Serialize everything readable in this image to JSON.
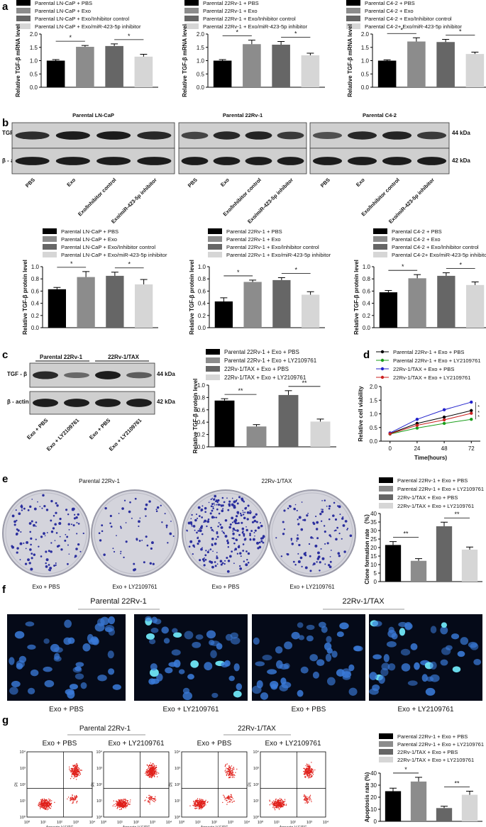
{
  "colors": {
    "s1": "#000000",
    "s2": "#8c8c8c",
    "s3": "#666666",
    "s4": "#d6d6d6",
    "dish": "#d4d4dc",
    "colony": "#2b2f9e",
    "flow_dot": "#e0201b",
    "nuclei": "#3a7ad8",
    "nuclei_bright": "#6fe6f5",
    "micro_bg": "#050a18"
  },
  "panel_labels": [
    "a",
    "b",
    "c",
    "d",
    "e",
    "f",
    "g"
  ],
  "chart_data": [
    {
      "id": "a1",
      "type": "bar",
      "panel": "a",
      "ylabel": "Relative TGF-β mRNA level",
      "ylim": [
        0,
        2.0
      ],
      "yticks": [
        "0.0",
        "0.5",
        "1.0",
        "1.5",
        "2.0"
      ],
      "legend": [
        "Parental LN-CaP + PBS",
        "Parental LN-CaP + Exo",
        "Parental LN-CaP + Exo/Inhibitor control",
        "Parental LN-CaP + Exo/miR-423-5p inhibitor"
      ],
      "values": [
        1.0,
        1.52,
        1.55,
        1.15
      ],
      "errors": [
        0.04,
        0.05,
        0.08,
        0.09
      ],
      "sig": [
        "*",
        "*"
      ]
    },
    {
      "id": "a2",
      "type": "bar",
      "panel": "a",
      "ylabel": "Relative TGF-β mRNA level",
      "ylim": [
        0,
        2.0
      ],
      "yticks": [
        "0.0",
        "0.5",
        "1.0",
        "1.5",
        "2.0"
      ],
      "legend": [
        "Parental 22Rv-1 + PBS",
        "Parental 22Rv-1 + Exo",
        "Parental 22Rv-1 + Exo/Inhibitor control",
        "Parental 22Rv-1 + Exo/miR-423-5p inhibitor"
      ],
      "values": [
        1.0,
        1.62,
        1.6,
        1.2
      ],
      "errors": [
        0.04,
        0.15,
        0.12,
        0.08
      ],
      "sig": [
        "*",
        "*"
      ]
    },
    {
      "id": "a3",
      "type": "bar",
      "panel": "a",
      "ylabel": "Relative TGF-β mRNA level",
      "ylim": [
        0,
        2.0
      ],
      "yticks": [
        "0.0",
        "0.5",
        "1.0",
        "1.5",
        "2.0"
      ],
      "legend": [
        "Parental C4-2 + PBS",
        "Parental C4-2 + Exo",
        "Parental C4-2 + Exo/Inhibitor control",
        "Parental C4-2+ Exo/miR-423-5p inhibitor"
      ],
      "values": [
        1.0,
        1.72,
        1.7,
        1.25
      ],
      "errors": [
        0.03,
        0.14,
        0.1,
        0.07
      ],
      "sig": [
        "*",
        "*"
      ]
    },
    {
      "id": "b1",
      "type": "bar",
      "panel": "b",
      "ylabel": "Relative TGF-β protein level",
      "ylim": [
        0,
        1.0
      ],
      "yticks": [
        "0.0",
        "0.2",
        "0.4",
        "0.6",
        "0.8",
        "1.0"
      ],
      "legend": [
        "Parental LN-CaP + PBS",
        "Parental LN-CaP + Exo",
        "Parental LN-CaP + Exo/Inhibitor control",
        "Parental LN-CaP + Exo/miR-423-5p inhibitor"
      ],
      "values": [
        0.63,
        0.83,
        0.85,
        0.71
      ],
      "errors": [
        0.03,
        0.09,
        0.06,
        0.08
      ],
      "sig": [
        "*",
        "*"
      ]
    },
    {
      "id": "b2",
      "type": "bar",
      "panel": "b",
      "ylabel": "Relative TGF-β protein level",
      "ylim": [
        0,
        1.0
      ],
      "yticks": [
        "0.0",
        "0.2",
        "0.4",
        "0.6",
        "0.8",
        "1.0"
      ],
      "legend": [
        "Parental 22Rv-1 + PBS",
        "Parental 22Rv-1 + Exo",
        "Parental 22Rv-1 + Exo/Inhibitor control",
        "Parental 22Rv-1 + Exo/miR-423-5p inhibitor"
      ],
      "values": [
        0.43,
        0.75,
        0.78,
        0.54
      ],
      "errors": [
        0.06,
        0.03,
        0.04,
        0.05
      ],
      "sig": [
        "*",
        "*"
      ]
    },
    {
      "id": "b3",
      "type": "bar",
      "panel": "b",
      "ylabel": "Relative TGF-β protein level",
      "ylim": [
        0,
        1.0
      ],
      "yticks": [
        "0.0",
        "0.2",
        "0.4",
        "0.6",
        "0.8",
        "1.0"
      ],
      "legend": [
        "Parental C4-2 + PBS",
        "Parental C4-2 + Exo",
        "Parental C4-2 + Exo/Inhibitor control",
        "Parental C4-2+ Exo/miR-423-5p inhibitor"
      ],
      "values": [
        0.58,
        0.81,
        0.85,
        0.7
      ],
      "errors": [
        0.03,
        0.06,
        0.05,
        0.05
      ],
      "sig": [
        "*",
        "*"
      ]
    },
    {
      "id": "c",
      "type": "bar",
      "panel": "c",
      "ylabel": "Relative TGF-β protein level",
      "ylim": [
        0,
        1.0
      ],
      "yticks": [
        "0.0",
        "0.2",
        "0.4",
        "0.6",
        "0.8",
        "1.0"
      ],
      "legend": [
        "Parental 22Rv-1 + Exo + PBS",
        "Parental 22Rv-1 + Exo + LY2109761",
        "22Rv-1/TAX + Exo + PBS",
        "22Rv-1/TAX + Exo + LY2109761"
      ],
      "values": [
        0.75,
        0.33,
        0.84,
        0.41
      ],
      "errors": [
        0.03,
        0.03,
        0.07,
        0.04
      ],
      "sig": [
        "**",
        "**"
      ]
    },
    {
      "id": "d",
      "type": "line",
      "panel": "d",
      "xlabel": "Time(hours)",
      "ylabel": "Relative cell viability",
      "x": [
        0,
        24,
        48,
        72
      ],
      "xticks": [
        "0",
        "24",
        "48",
        "72"
      ],
      "ylim": [
        0,
        2.0
      ],
      "yticks": [
        "0.0",
        "0.5",
        "1.0",
        "1.5",
        "2.0"
      ],
      "series": [
        {
          "name": "Parental 22Rv-1 + Exo + PBS",
          "values": [
            0.28,
            0.65,
            0.88,
            1.12
          ],
          "color": "#000000",
          "marker": "circle"
        },
        {
          "name": "Parental 22Rv-1 + Exo + LY2109761",
          "values": [
            0.26,
            0.48,
            0.65,
            0.8
          ],
          "color": "#1a9e1a",
          "marker": "square"
        },
        {
          "name": "22Rv-1/TAX + Exo + PBS",
          "values": [
            0.3,
            0.8,
            1.15,
            1.43
          ],
          "color": "#2222cc",
          "marker": "triangle"
        },
        {
          "name": "22Rv-1/TAX + Exo + LY2109761",
          "values": [
            0.27,
            0.58,
            0.78,
            1.02
          ],
          "color": "#cc2222",
          "marker": "triangle-down"
        }
      ],
      "sig": [
        "*",
        "*",
        "*"
      ]
    },
    {
      "id": "e",
      "type": "bar",
      "panel": "e",
      "ylabel": "Clone formation rate （%）",
      "ylim": [
        0,
        40
      ],
      "yticks": [
        "0",
        "5",
        "10",
        "15",
        "20",
        "25",
        "30",
        "35",
        "40"
      ],
      "legend": [
        "Parental 22Rv-1 + Exo + PBS",
        "Parental 22Rv-1 + Exo + LY2109761",
        "22Rv-1/TAX + Exo + PBS",
        "22Rv-1/TAX + Exo + LY2109761"
      ],
      "values": [
        21.5,
        12.2,
        32.5,
        18.8
      ],
      "errors": [
        2.0,
        1.3,
        2.4,
        1.5
      ],
      "sig": [
        "**",
        "**"
      ]
    },
    {
      "id": "g",
      "type": "bar",
      "panel": "g",
      "ylabel": "Apoptosis rate (%)",
      "ylim": [
        0,
        40
      ],
      "yticks": [
        "0",
        "10",
        "20",
        "30",
        "40"
      ],
      "legend": [
        "Parental 22Rv-1 + Exo + PBS",
        "Parental 22Rv-1 + Exo + LY2109761",
        "22Rv-1/TAX + Exo + PBS",
        "22Rv-1/TAX + Exo + LY2109761"
      ],
      "values": [
        25.0,
        33.0,
        11.0,
        22.0
      ],
      "errors": [
        2.5,
        3.5,
        1.5,
        3.0
      ],
      "sig": [
        "*",
        "**"
      ]
    }
  ],
  "blot_b": {
    "groups": [
      "Parental LN-CaP",
      "Parental 22Rv-1",
      "Parental C4-2"
    ],
    "rows": [
      "TGF-β",
      "β - actin"
    ],
    "kda": [
      "44 kDa",
      "42 kDa"
    ],
    "lanes": [
      "PBS",
      "Exo",
      "Exo/Inhibitor control",
      "Exo/miR-423-5p inhibitor"
    ],
    "intensity": [
      [
        0.8,
        0.95,
        0.95,
        0.85
      ],
      [
        0.6,
        0.85,
        0.9,
        0.7
      ],
      [
        0.5,
        0.85,
        0.9,
        0.7
      ]
    ]
  },
  "blot_c": {
    "groups": [
      "Parental 22Rv-1",
      "22Rv-1/TAX"
    ],
    "rows": [
      "TGF - β",
      "β - actin"
    ],
    "kda": [
      "44 kDa",
      "42 kDa"
    ],
    "lanes": [
      "Exo + PBS",
      "Exo + LY2109761",
      "Exo + PBS",
      "Exo + LY2109761"
    ],
    "intensity": [
      0.85,
      0.35,
      0.95,
      0.45
    ]
  },
  "colony": {
    "groups": [
      "Parental 22Rv-1",
      "22Rv-1/TAX"
    ],
    "labels": [
      "Exo + PBS",
      "Exo + LY2109761",
      "Exo + PBS",
      "Exo + LY2109761"
    ],
    "density": [
      120,
      60,
      260,
      110
    ]
  },
  "micro": {
    "groups": [
      "Parental 22Rv-1",
      "22Rv-1/TAX"
    ],
    "labels": [
      "Exo + PBS",
      "Exo + LY2109761",
      "Exo + PBS",
      "Exo + LY2109761"
    ],
    "bright_fraction": [
      0.08,
      0.18,
      0.05,
      0.12
    ]
  },
  "flow": {
    "groups": [
      "Parental 22Rv-1",
      "22Rv-1/TAX"
    ],
    "labels": [
      "Exo + PBS",
      "Exo + LY2109761",
      "Exo + PBS",
      "Exo + LY2109761"
    ],
    "ylabel": "PI",
    "xlabel": "Annexin V FITC",
    "ticks": [
      "10⁰",
      "10¹",
      "10²",
      "10³",
      "10⁴"
    ],
    "upper_right_fraction": [
      0.25,
      0.35,
      0.12,
      0.22
    ]
  }
}
